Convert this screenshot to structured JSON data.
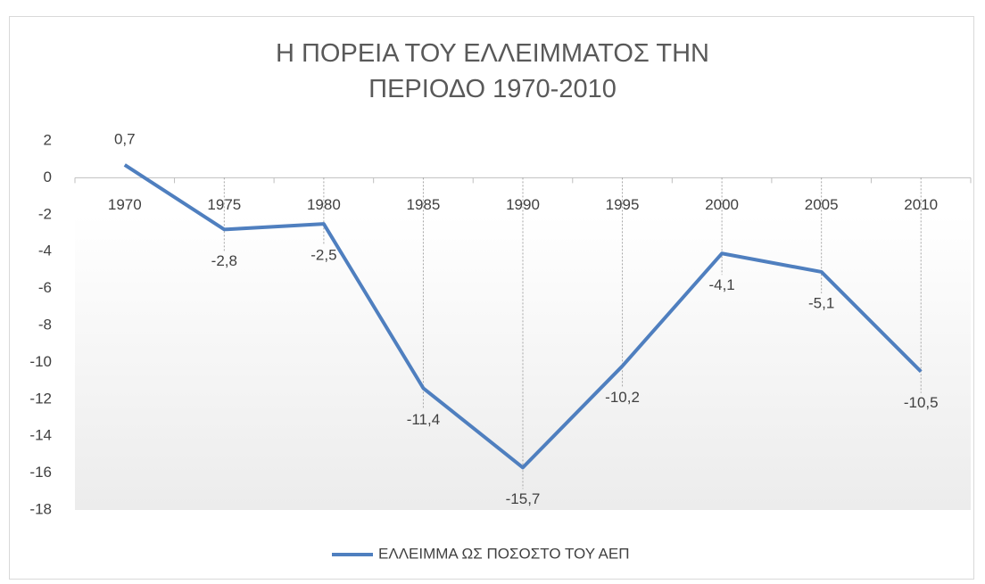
{
  "chart_data": {
    "type": "line",
    "title": "Η ΠΟΡΕΙΑ ΤΟΥ ΕΛΛΕΙΜΜΑΤΟΣ ΤΗΝ ΠΕΡΙΟΔΟ 1970-2010",
    "categories": [
      "1970",
      "1975",
      "1980",
      "1985",
      "1990",
      "1995",
      "2000",
      "2005",
      "2010"
    ],
    "series": [
      {
        "name": "ΕΛΛΕΙΜΜΑ ΩΣ ΠΟΣΟΣΤΟ ΤΟΥ ΑΕΠ",
        "color": "#4f7fbf",
        "values": [
          0.7,
          -2.8,
          -2.5,
          -11.4,
          -15.7,
          -10.2,
          -4.1,
          -5.1,
          -10.5
        ],
        "value_labels": [
          "0,7",
          "-2,8",
          "-2,5",
          "-11,4",
          "-15,7",
          "-10,2",
          "-4,1",
          "-5,1",
          "-10,5"
        ]
      }
    ],
    "ylim": [
      -18,
      2
    ],
    "yticks": [
      -18,
      -16,
      -14,
      -12,
      -10,
      -8,
      -6,
      -4,
      -2,
      0,
      2
    ],
    "legend": "bottom"
  }
}
